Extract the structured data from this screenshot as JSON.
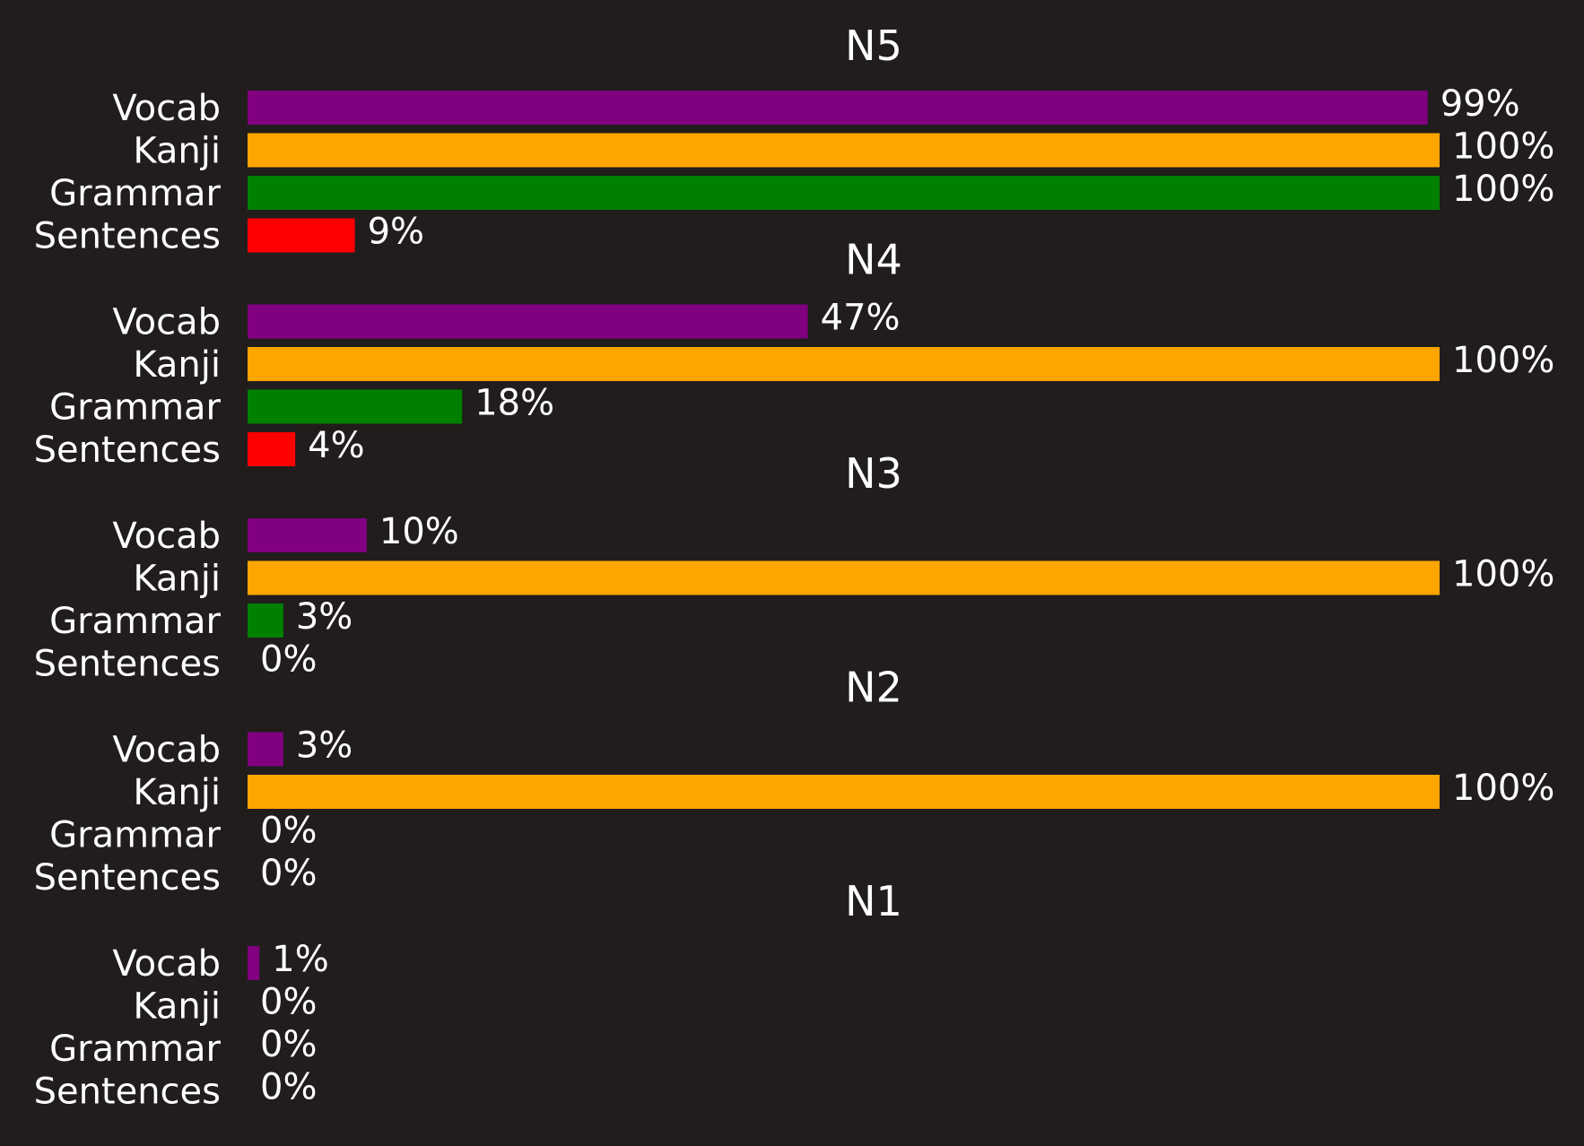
{
  "chart_data": [
    {
      "type": "bar",
      "orientation": "horizontal",
      "title": "N5",
      "categories": [
        "Vocab",
        "Kanji",
        "Grammar",
        "Sentences"
      ],
      "values": [
        99,
        100,
        100,
        9
      ],
      "value_labels": [
        "99%",
        "100%",
        "100%",
        "9%"
      ],
      "colors": [
        "#800080",
        "#ffa500",
        "#008000",
        "#ff0000"
      ],
      "xlim": [
        0,
        100
      ],
      "grid": false
    },
    {
      "type": "bar",
      "orientation": "horizontal",
      "title": "N4",
      "categories": [
        "Vocab",
        "Kanji",
        "Grammar",
        "Sentences"
      ],
      "values": [
        47,
        100,
        18,
        4
      ],
      "value_labels": [
        "47%",
        "100%",
        "18%",
        "4%"
      ],
      "colors": [
        "#800080",
        "#ffa500",
        "#008000",
        "#ff0000"
      ],
      "xlim": [
        0,
        100
      ],
      "grid": false
    },
    {
      "type": "bar",
      "orientation": "horizontal",
      "title": "N3",
      "categories": [
        "Vocab",
        "Kanji",
        "Grammar",
        "Sentences"
      ],
      "values": [
        10,
        100,
        3,
        0
      ],
      "value_labels": [
        "10%",
        "100%",
        "3%",
        "0%"
      ],
      "colors": [
        "#800080",
        "#ffa500",
        "#008000",
        "#ff0000"
      ],
      "xlim": [
        0,
        100
      ],
      "grid": false
    },
    {
      "type": "bar",
      "orientation": "horizontal",
      "title": "N2",
      "categories": [
        "Vocab",
        "Kanji",
        "Grammar",
        "Sentences"
      ],
      "values": [
        3,
        100,
        0,
        0
      ],
      "value_labels": [
        "3%",
        "100%",
        "0%",
        "0%"
      ],
      "colors": [
        "#800080",
        "#ffa500",
        "#008000",
        "#ff0000"
      ],
      "xlim": [
        0,
        100
      ],
      "grid": false
    },
    {
      "type": "bar",
      "orientation": "horizontal",
      "title": "N1",
      "categories": [
        "Vocab",
        "Kanji",
        "Grammar",
        "Sentences"
      ],
      "values": [
        1,
        0,
        0,
        0
      ],
      "value_labels": [
        "1%",
        "0%",
        "0%",
        "0%"
      ],
      "colors": [
        "#800080",
        "#ffa500",
        "#008000",
        "#ff0000"
      ],
      "xlim": [
        0,
        100
      ],
      "grid": false
    }
  ],
  "theme": {
    "background": "#201d1c",
    "text": "#ffffff"
  }
}
